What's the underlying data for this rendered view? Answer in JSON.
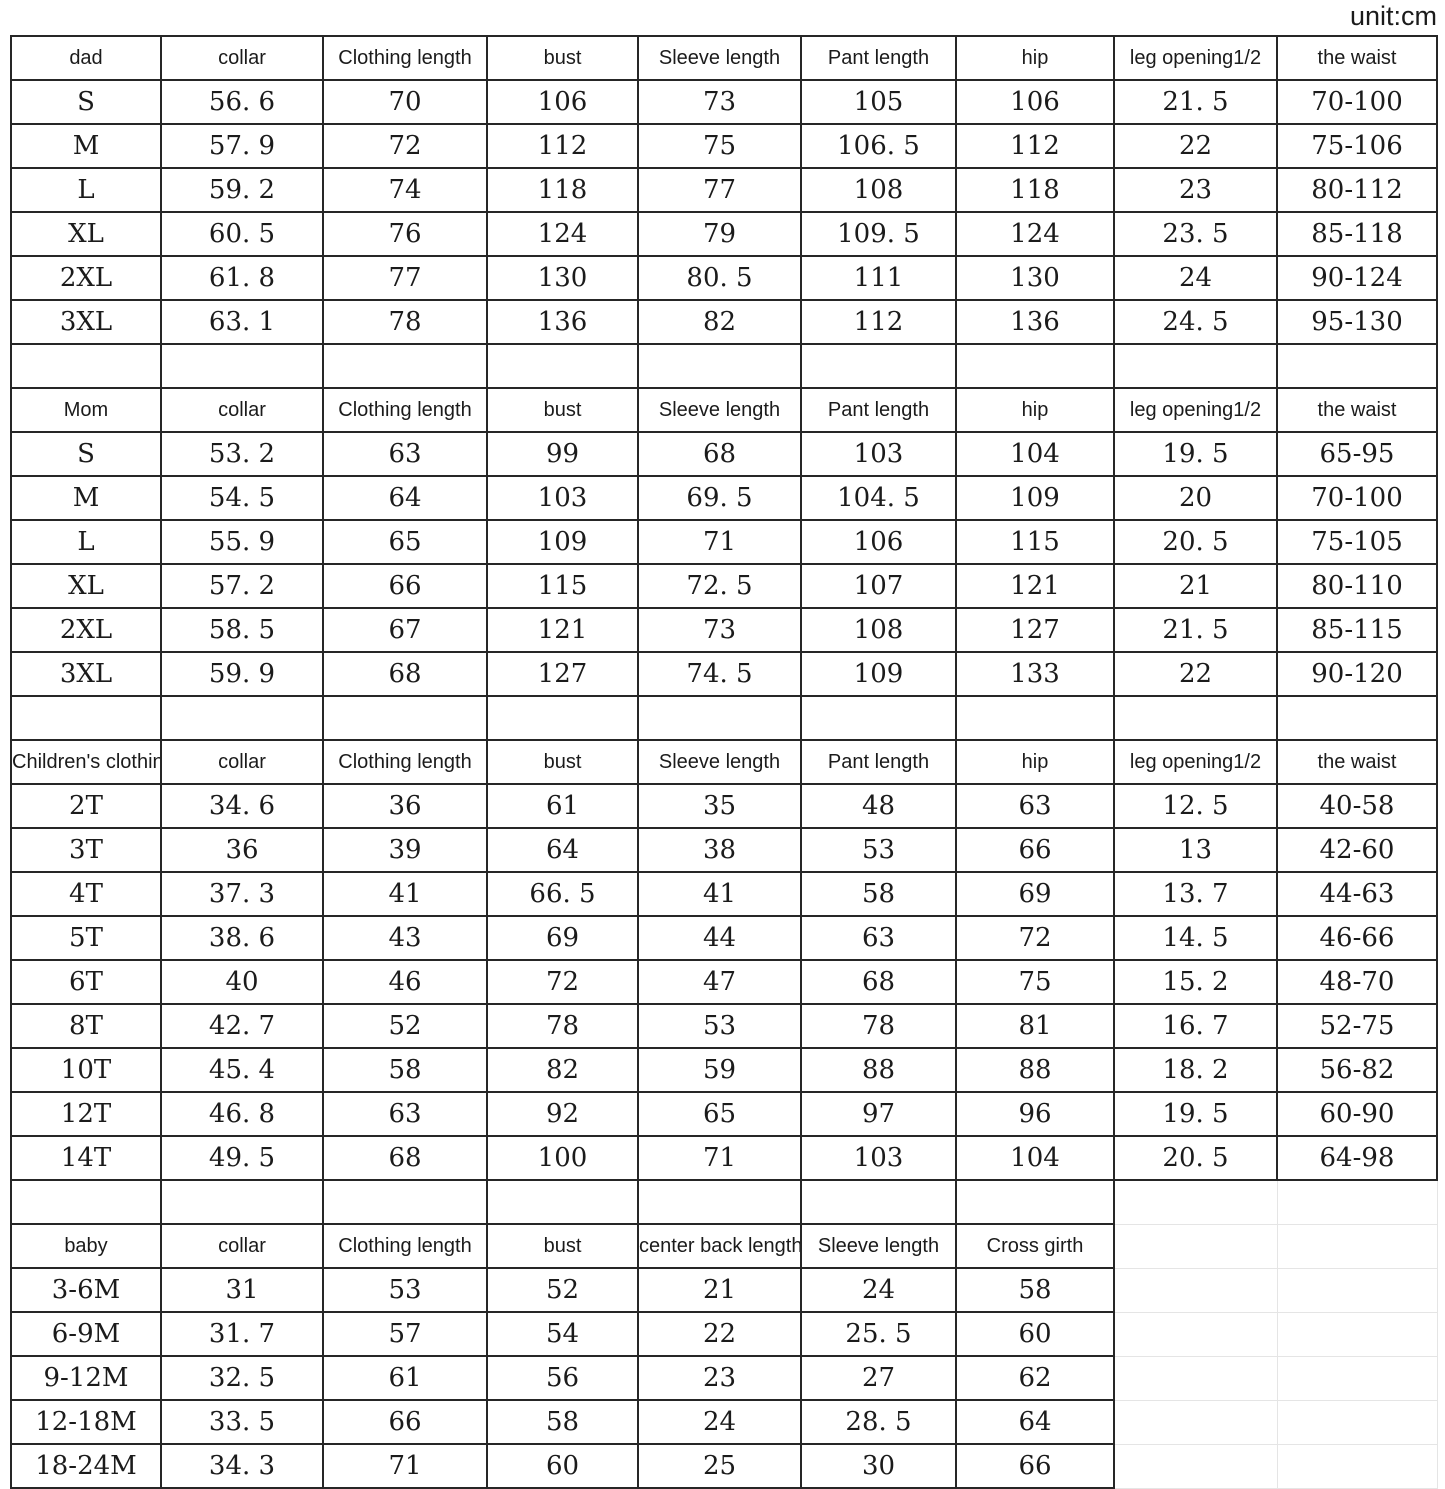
{
  "unit_label": "unit:cm",
  "sections": [
    {
      "id": "dad",
      "headers": [
        "dad",
        "collar",
        "Clothing length",
        "bust",
        "Sleeve length",
        "Pant length",
        "hip",
        "leg opening1/2",
        "the waist"
      ],
      "rows": [
        [
          "S",
          "56. 6",
          "70",
          "106",
          "73",
          "105",
          "106",
          "21. 5",
          "70-100"
        ],
        [
          "M",
          "57. 9",
          "72",
          "112",
          "75",
          "106. 5",
          "112",
          "22",
          "75-106"
        ],
        [
          "L",
          "59. 2",
          "74",
          "118",
          "77",
          "108",
          "118",
          "23",
          "80-112"
        ],
        [
          "XL",
          "60. 5",
          "76",
          "124",
          "79",
          "109. 5",
          "124",
          "23. 5",
          "85-118"
        ],
        [
          "2XL",
          "61. 8",
          "77",
          "130",
          "80. 5",
          "111",
          "130",
          "24",
          "90-124"
        ],
        [
          "3XL",
          "63. 1",
          "78",
          "136",
          "82",
          "112",
          "136",
          "24. 5",
          "95-130"
        ]
      ]
    },
    {
      "id": "mom",
      "headers": [
        "Mom",
        "collar",
        "Clothing length",
        "bust",
        "Sleeve length",
        "Pant length",
        "hip",
        "leg opening1/2",
        "the waist"
      ],
      "rows": [
        [
          "S",
          "53. 2",
          "63",
          "99",
          "68",
          "103",
          "104",
          "19. 5",
          "65-95"
        ],
        [
          "M",
          "54. 5",
          "64",
          "103",
          "69. 5",
          "104. 5",
          "109",
          "20",
          "70-100"
        ],
        [
          "L",
          "55. 9",
          "65",
          "109",
          "71",
          "106",
          "115",
          "20. 5",
          "75-105"
        ],
        [
          "XL",
          "57. 2",
          "66",
          "115",
          "72. 5",
          "107",
          "121",
          "21",
          "80-110"
        ],
        [
          "2XL",
          "58. 5",
          "67",
          "121",
          "73",
          "108",
          "127",
          "21. 5",
          "85-115"
        ],
        [
          "3XL",
          "59. 9",
          "68",
          "127",
          "74. 5",
          "109",
          "133",
          "22",
          "90-120"
        ]
      ]
    },
    {
      "id": "children",
      "headers": [
        "Children's clothing",
        "collar",
        "Clothing length",
        "bust",
        "Sleeve length",
        "Pant length",
        "hip",
        "leg opening1/2",
        "the waist"
      ],
      "rows": [
        [
          "2T",
          "34. 6",
          "36",
          "61",
          "35",
          "48",
          "63",
          "12. 5",
          "40-58"
        ],
        [
          "3T",
          "36",
          "39",
          "64",
          "38",
          "53",
          "66",
          "13",
          "42-60"
        ],
        [
          "4T",
          "37. 3",
          "41",
          "66. 5",
          "41",
          "58",
          "69",
          "13. 7",
          "44-63"
        ],
        [
          "5T",
          "38. 6",
          "43",
          "69",
          "44",
          "63",
          "72",
          "14. 5",
          "46-66"
        ],
        [
          "6T",
          "40",
          "46",
          "72",
          "47",
          "68",
          "75",
          "15. 2",
          "48-70"
        ],
        [
          "8T",
          "42. 7",
          "52",
          "78",
          "53",
          "78",
          "81",
          "16. 7",
          "52-75"
        ],
        [
          "10T",
          "45. 4",
          "58",
          "82",
          "59",
          "88",
          "88",
          "18. 2",
          "56-82"
        ],
        [
          "12T",
          "46. 8",
          "63",
          "92",
          "65",
          "97",
          "96",
          "19. 5",
          "60-90"
        ],
        [
          "14T",
          "49. 5",
          "68",
          "100",
          "71",
          "103",
          "104",
          "20. 5",
          "64-98"
        ]
      ]
    },
    {
      "id": "baby",
      "headers": [
        "baby",
        "collar",
        "Clothing length",
        "bust",
        "center back length",
        "Sleeve length",
        "Cross girth"
      ],
      "rows": [
        [
          "3-6M",
          "31",
          "53",
          "52",
          "21",
          "24",
          "58"
        ],
        [
          "6-9M",
          "31. 7",
          "57",
          "54",
          "22",
          "25. 5",
          "60"
        ],
        [
          "9-12M",
          "32. 5",
          "61",
          "56",
          "23",
          "27",
          "62"
        ],
        [
          "12-18M",
          "33. 5",
          "66",
          "58",
          "24",
          "28. 5",
          "64"
        ],
        [
          "18-24M",
          "34. 3",
          "71",
          "60",
          "25",
          "30",
          "66"
        ]
      ]
    }
  ]
}
